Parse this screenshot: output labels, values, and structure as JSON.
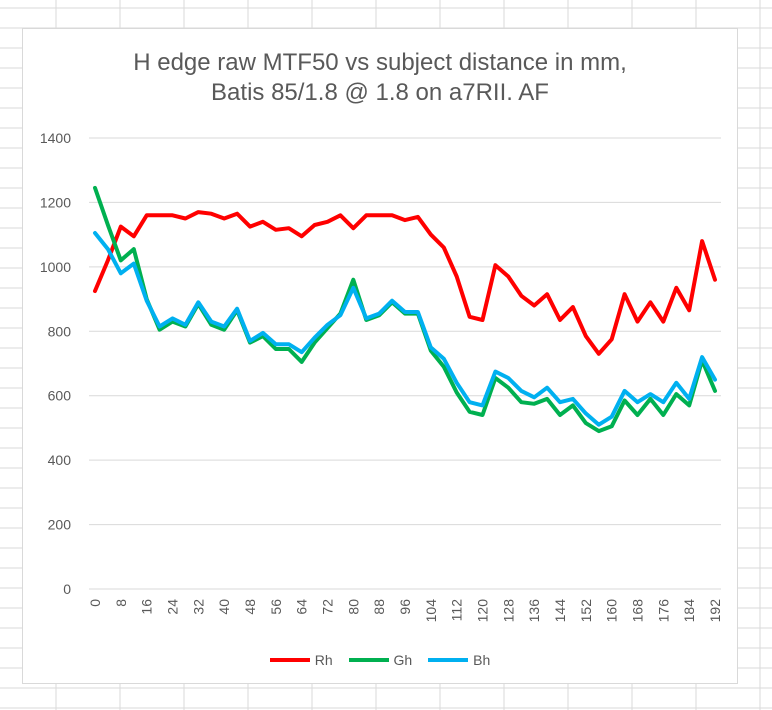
{
  "chart_data": {
    "type": "line",
    "title_lines": [
      "H edge raw MTF50 vs subject distance in mm,",
      "Batis 85/1.8 @ 1.8 on a7RII. AF"
    ],
    "ylim": [
      0,
      1400
    ],
    "y_ticks": [
      0,
      200,
      400,
      600,
      800,
      1000,
      1200,
      1400
    ],
    "x_ticks": [
      "0",
      "8",
      "16",
      "24",
      "32",
      "40",
      "48",
      "56",
      "64",
      "72",
      "80",
      "88",
      "96",
      "104",
      "112",
      "120",
      "128",
      "136",
      "144",
      "152",
      "160",
      "168",
      "176",
      "184",
      "192"
    ],
    "x": [
      0,
      4,
      8,
      12,
      16,
      20,
      24,
      28,
      32,
      36,
      40,
      44,
      48,
      52,
      56,
      60,
      64,
      68,
      72,
      76,
      80,
      84,
      88,
      92,
      96,
      100,
      104,
      108,
      112,
      116,
      120,
      124,
      128,
      132,
      136,
      140,
      144,
      148,
      152,
      156,
      160,
      164,
      168,
      172,
      176,
      180,
      184,
      188,
      192
    ],
    "series": [
      {
        "name": "Rh",
        "color": "#ff0000",
        "values": [
          925,
          1020,
          1125,
          1095,
          1160,
          1160,
          1160,
          1150,
          1170,
          1165,
          1150,
          1165,
          1125,
          1140,
          1115,
          1120,
          1095,
          1130,
          1140,
          1160,
          1120,
          1160,
          1160,
          1160,
          1145,
          1155,
          1100,
          1060,
          970,
          845,
          835,
          1005,
          970,
          910,
          880,
          915,
          835,
          875,
          785,
          730,
          775,
          915,
          830,
          890,
          830,
          935,
          865,
          1080,
          960
        ]
      },
      {
        "name": "Gh",
        "color": "#00b050",
        "values": [
          1245,
          1130,
          1020,
          1055,
          900,
          805,
          830,
          815,
          885,
          820,
          805,
          865,
          765,
          785,
          745,
          745,
          705,
          765,
          810,
          855,
          960,
          835,
          850,
          890,
          855,
          855,
          740,
          690,
          610,
          550,
          540,
          655,
          625,
          580,
          575,
          590,
          540,
          570,
          515,
          490,
          505,
          585,
          540,
          590,
          540,
          605,
          570,
          710,
          615
        ]
      },
      {
        "name": "Bh",
        "color": "#00b0f0",
        "values": [
          1105,
          1055,
          980,
          1010,
          895,
          815,
          840,
          820,
          890,
          830,
          815,
          870,
          770,
          795,
          760,
          760,
          735,
          780,
          820,
          850,
          935,
          840,
          855,
          895,
          860,
          860,
          750,
          715,
          640,
          580,
          570,
          675,
          655,
          615,
          595,
          625,
          580,
          590,
          545,
          510,
          535,
          615,
          580,
          605,
          580,
          640,
          590,
          720,
          650
        ]
      }
    ]
  }
}
